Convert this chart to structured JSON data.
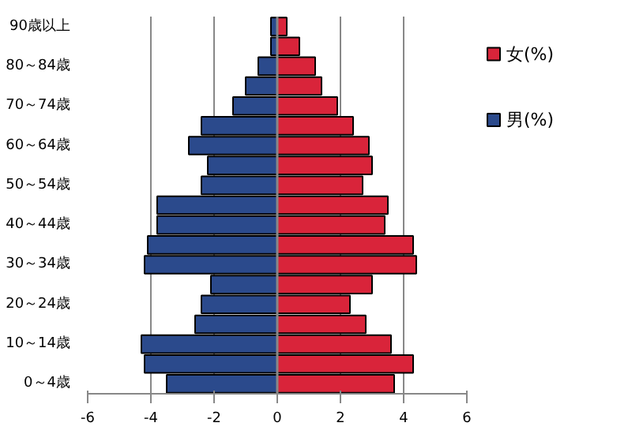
{
  "chart_data": {
    "type": "bar",
    "orientation": "horizontal",
    "categories": [
      "90歳以上",
      null,
      "80～84歳",
      null,
      "70～74歳",
      null,
      "60～64歳",
      null,
      "50～54歳",
      null,
      "40～44歳",
      null,
      "30～34歳",
      null,
      "20～24歳",
      null,
      "10～14歳",
      null,
      "0～4歳"
    ],
    "series": [
      {
        "name": "女(%)",
        "color": "#d9243a",
        "values": [
          0.3,
          0.7,
          1.2,
          1.4,
          1.9,
          2.4,
          2.9,
          3.0,
          2.7,
          3.5,
          3.4,
          4.3,
          4.4,
          3.0,
          2.3,
          2.8,
          3.6,
          4.3,
          3.7
        ]
      },
      {
        "name": "男(%)",
        "color": "#2b4a8c",
        "values": [
          -0.2,
          -0.2,
          -0.6,
          -1.0,
          -1.4,
          -2.4,
          -2.8,
          -2.2,
          -2.4,
          -3.8,
          -3.8,
          -4.1,
          -4.2,
          -2.1,
          -2.4,
          -2.6,
          -4.3,
          -4.2,
          -3.5
        ]
      }
    ],
    "stacked": true,
    "xlim": [
      -6,
      6
    ],
    "xticks": [
      -6,
      -4,
      -2,
      0,
      2,
      4,
      6
    ],
    "grid": "x",
    "legend": "right"
  }
}
